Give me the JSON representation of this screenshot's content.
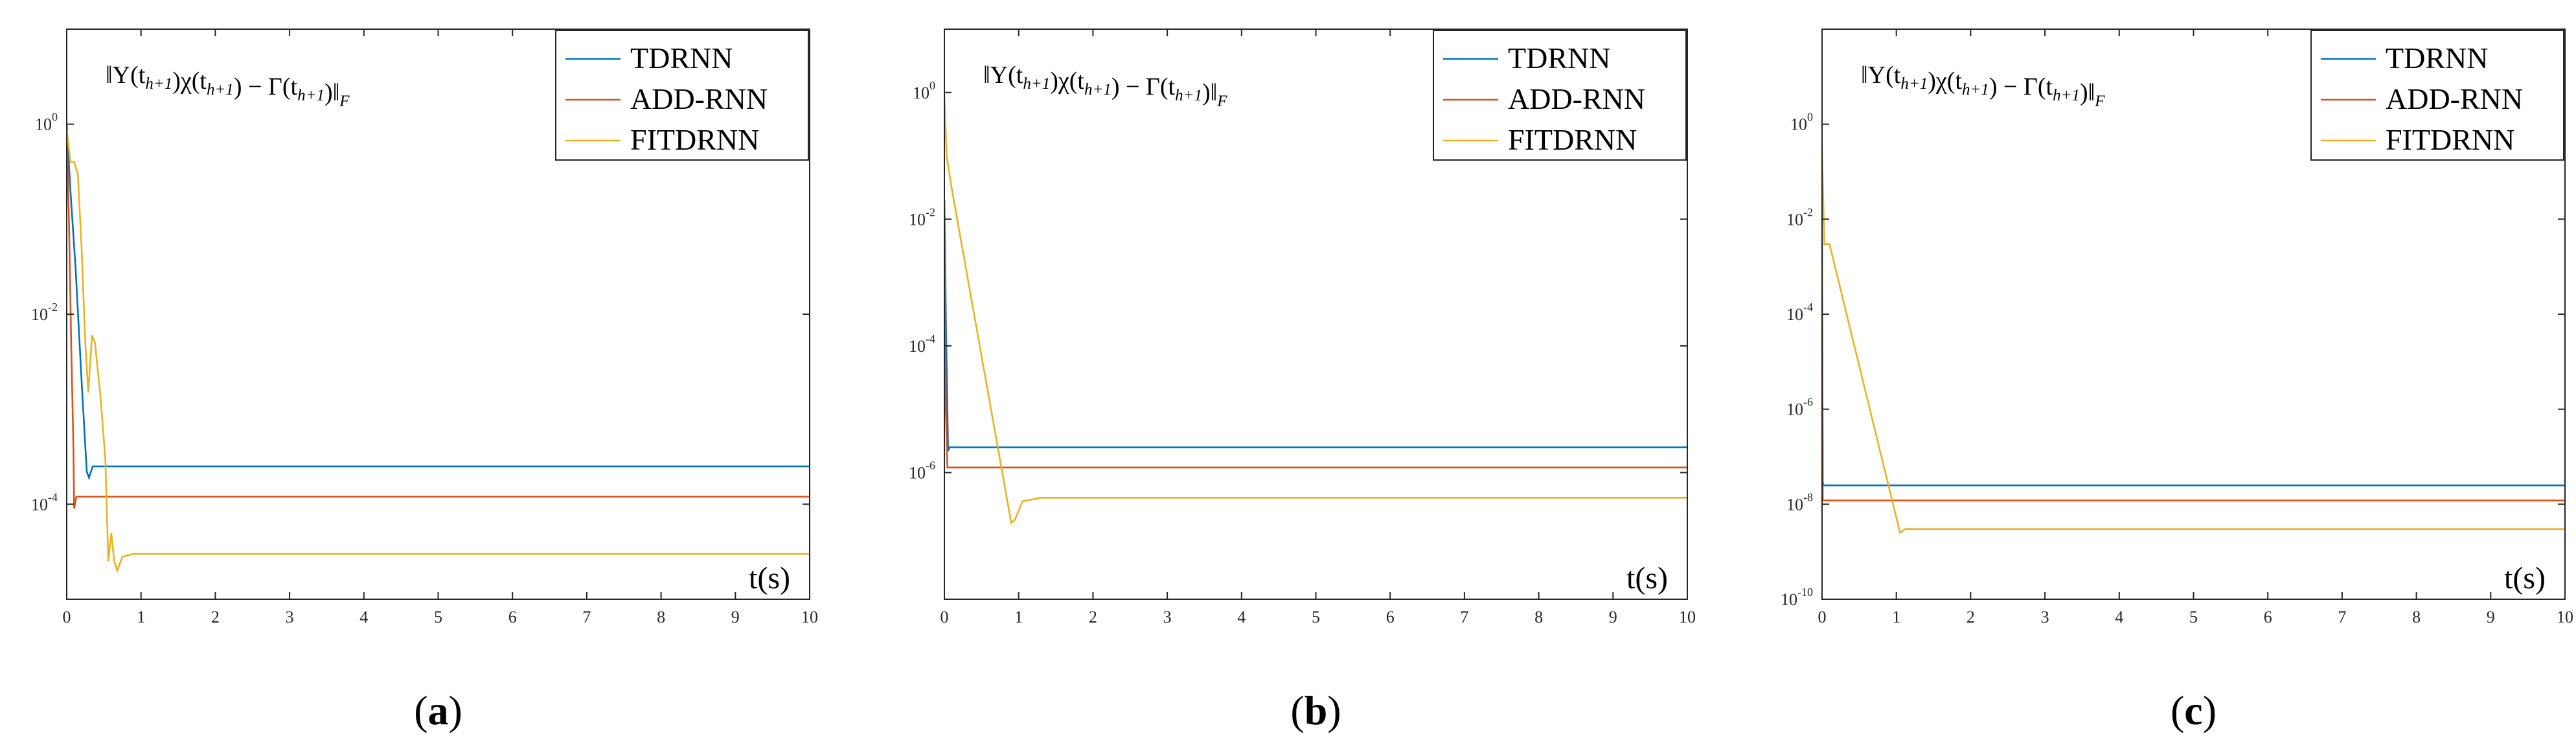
{
  "colors": {
    "TDRNN": "#0072BD",
    "ADD-RNN": "#D95319",
    "FITDRNN": "#EDB120",
    "axis": "#262626"
  },
  "chart_data": [
    {
      "type": "line",
      "caption": "a",
      "annotation": "‖Υ(t_{h+1})χ(t_{h+1}) − Γ(t_{h+1})‖_F",
      "x_unit_label": "t(s)",
      "xlim": [
        0,
        10
      ],
      "xticks": [
        0,
        1,
        2,
        3,
        4,
        5,
        6,
        7,
        8,
        9,
        10
      ],
      "ylog": true,
      "ylim_exp": [
        -5.0,
        1.0
      ],
      "ytick_exps": [
        -4,
        -2,
        0
      ],
      "legend_position": "top-right",
      "series": [
        {
          "name": "TDRNN",
          "color": "#0072BD",
          "points": [
            [
              0,
              1.0
            ],
            [
              0.05,
              0.2
            ],
            [
              0.12,
              0.03
            ],
            [
              0.2,
              0.002
            ],
            [
              0.27,
              0.00022
            ],
            [
              0.3,
              0.00019
            ],
            [
              0.35,
              0.00025
            ],
            [
              0.45,
              0.00025
            ],
            [
              10,
              0.00025
            ]
          ]
        },
        {
          "name": "ADD-RNN",
          "color": "#D95319",
          "points": [
            [
              0,
              0.8
            ],
            [
              0.03,
              0.1
            ],
            [
              0.06,
              0.005
            ],
            [
              0.09,
              0.0004
            ],
            [
              0.1,
              9e-05
            ],
            [
              0.13,
              0.00012
            ],
            [
              0.2,
              0.00012
            ],
            [
              10,
              0.00012
            ]
          ]
        },
        {
          "name": "FITDRNN",
          "color": "#EDB120",
          "points": [
            [
              0,
              0.9
            ],
            [
              0.05,
              0.4
            ],
            [
              0.1,
              0.4
            ],
            [
              0.15,
              0.3
            ],
            [
              0.2,
              0.05
            ],
            [
              0.25,
              0.005
            ],
            [
              0.29,
              0.0015
            ],
            [
              0.34,
              0.006
            ],
            [
              0.38,
              0.005
            ],
            [
              0.45,
              0.0015
            ],
            [
              0.52,
              0.0003
            ],
            [
              0.56,
              2.5e-05
            ],
            [
              0.6,
              5e-05
            ],
            [
              0.64,
              2.5e-05
            ],
            [
              0.68,
              2e-05
            ],
            [
              0.75,
              2.8e-05
            ],
            [
              0.9,
              3e-05
            ],
            [
              10,
              3e-05
            ]
          ]
        }
      ]
    },
    {
      "type": "line",
      "caption": "b",
      "annotation": "‖Υ(t_{h+1})χ(t_{h+1}) − Γ(t_{h+1})‖_F",
      "x_unit_label": "t(s)",
      "xlim": [
        0,
        10
      ],
      "xticks": [
        0,
        1,
        2,
        3,
        4,
        5,
        6,
        7,
        8,
        9,
        10
      ],
      "ylog": true,
      "ylim_exp": [
        -8.0,
        1.0
      ],
      "ytick_exps": [
        -6,
        -4,
        -2,
        0
      ],
      "legend_position": "top-right",
      "series": [
        {
          "name": "TDRNN",
          "color": "#0072BD",
          "points": [
            [
              0,
              0.02
            ],
            [
              0.02,
              0.0003
            ],
            [
              0.04,
              1e-05
            ],
            [
              0.05,
              2.2e-06
            ],
            [
              0.07,
              2.5e-06
            ],
            [
              0.1,
              2.5e-06
            ],
            [
              10,
              2.5e-06
            ]
          ]
        },
        {
          "name": "ADD-RNN",
          "color": "#D95319",
          "points": [
            [
              0,
              0.01
            ],
            [
              0.02,
              1e-05
            ],
            [
              0.04,
              1.2e-06
            ],
            [
              0.06,
              1.2e-06
            ],
            [
              10,
              1.2e-06
            ]
          ]
        },
        {
          "name": "FITDRNN",
          "color": "#EDB120",
          "points": [
            [
              0,
              0.9
            ],
            [
              0.03,
              0.1
            ],
            [
              0.1,
              0.03
            ],
            [
              0.9,
              1.6e-07
            ],
            [
              0.95,
              1.8e-07
            ],
            [
              1.05,
              3.5e-07
            ],
            [
              1.3,
              4e-07
            ],
            [
              10,
              4e-07
            ]
          ]
        }
      ]
    },
    {
      "type": "line",
      "caption": "c",
      "annotation": "‖Υ(t_{h+1})χ(t_{h+1}) − Γ(t_{h+1})‖_F",
      "x_unit_label": "t(s)",
      "xlim": [
        0,
        10
      ],
      "xticks": [
        0,
        1,
        2,
        3,
        4,
        5,
        6,
        7,
        8,
        9,
        10
      ],
      "ylog": true,
      "ylim_exp": [
        -10.0,
        2.0
      ],
      "ytick_exps": [
        -10,
        -8,
        -6,
        -4,
        -2,
        0
      ],
      "legend_position": "top-right",
      "series": [
        {
          "name": "TDRNN",
          "color": "#0072BD",
          "points": [
            [
              0,
              0.003
            ],
            [
              0.01,
              3e-08
            ],
            [
              0.02,
              2.5e-08
            ],
            [
              0.05,
              2.5e-08
            ],
            [
              10,
              2.5e-08
            ]
          ]
        },
        {
          "name": "ADD-RNN",
          "color": "#D95319",
          "points": [
            [
              0,
              0.003
            ],
            [
              0.01,
              1.2e-08
            ],
            [
              0.03,
              1.2e-08
            ],
            [
              10,
              1.2e-08
            ]
          ]
        },
        {
          "name": "FITDRNN",
          "color": "#EDB120",
          "points": [
            [
              0,
              0.3
            ],
            [
              0.03,
              0.003
            ],
            [
              0.1,
              0.003
            ],
            [
              1.05,
              2.5e-09
            ],
            [
              1.12,
              3e-09
            ],
            [
              1.3,
              3e-09
            ],
            [
              10,
              3e-09
            ]
          ]
        }
      ]
    }
  ]
}
